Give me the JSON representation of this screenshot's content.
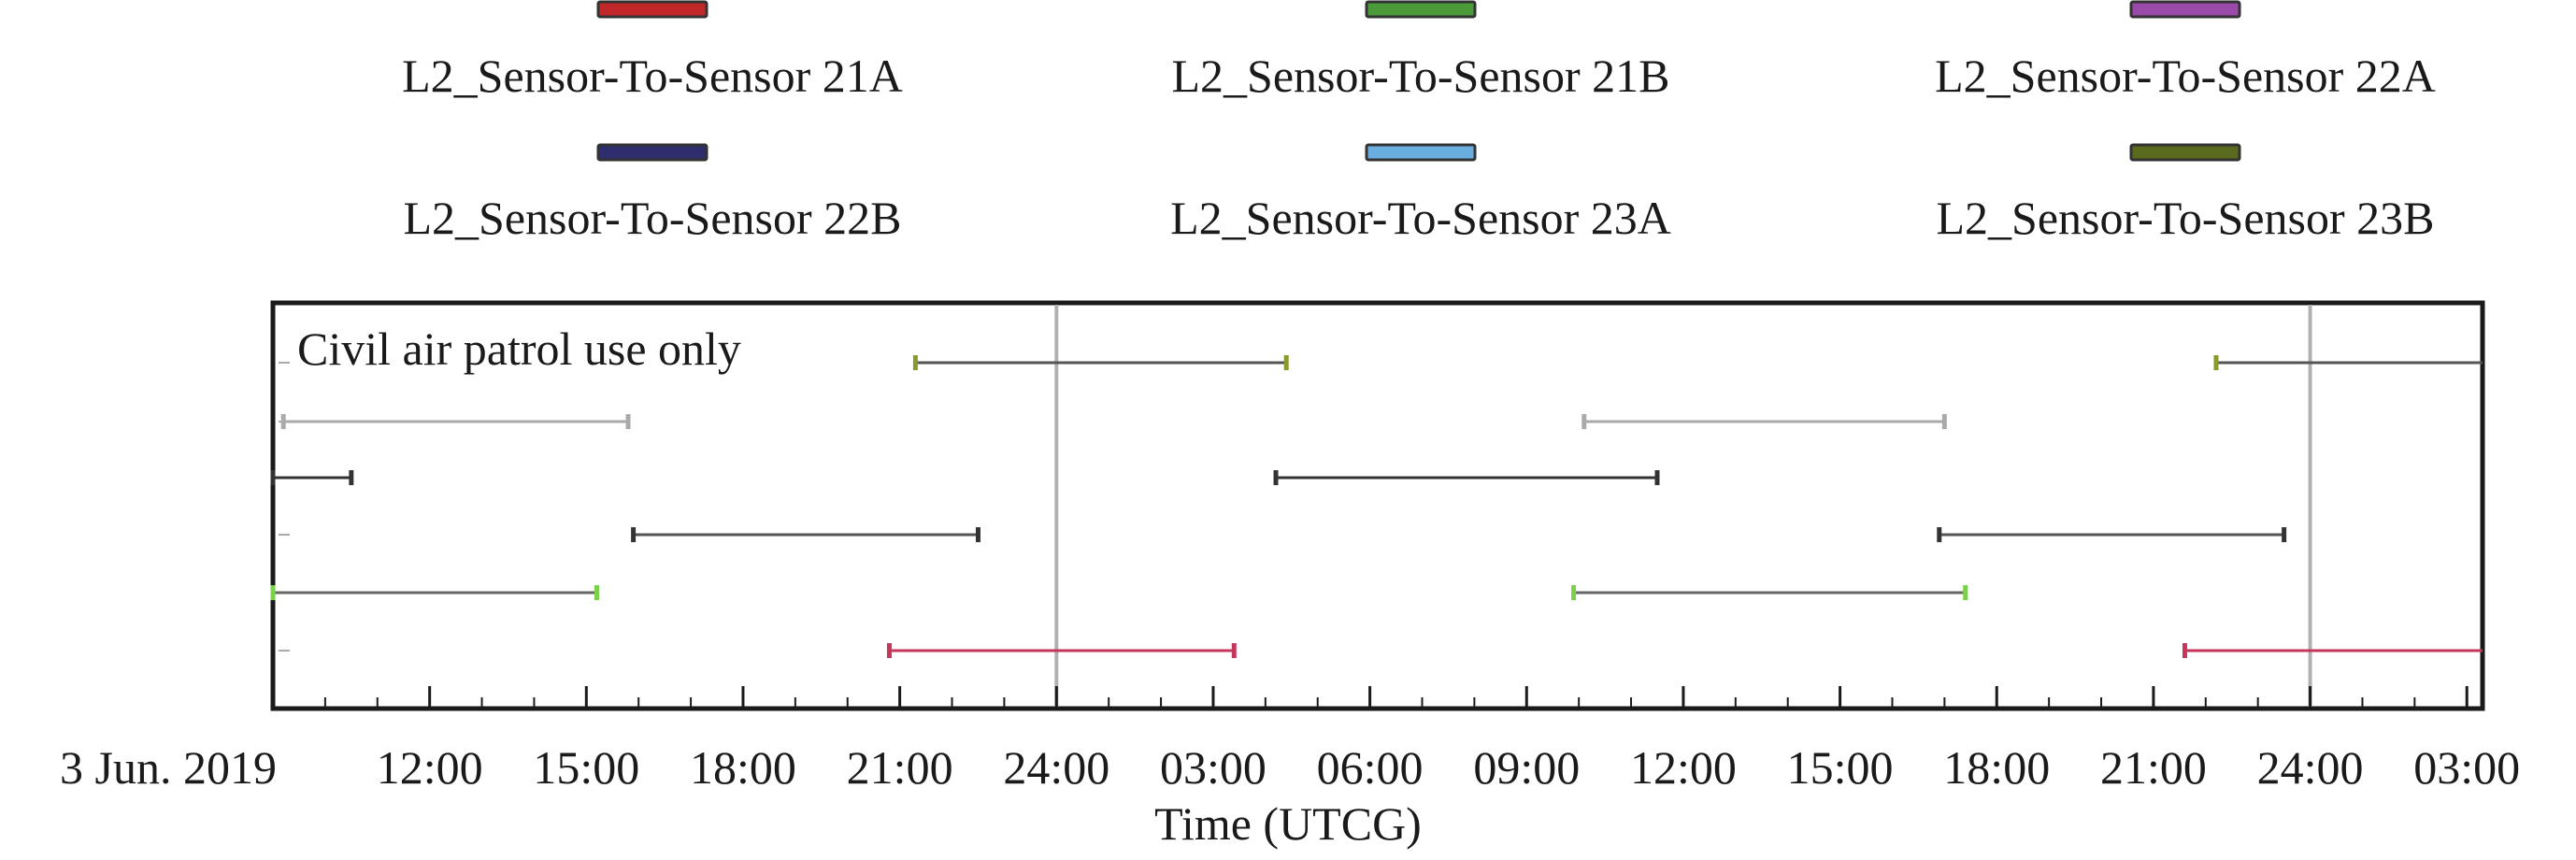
{
  "chart_data": {
    "type": "gantt",
    "title": "",
    "xlabel": "Time (UTCG)",
    "ylabel": "",
    "annotation": "Civil air patrol use only",
    "x_range_hours": [
      9,
      51.3
    ],
    "x_ticks": [
      {
        "hour": 9,
        "label": "3 Jun. 2019"
      },
      {
        "hour": 12,
        "label": "12:00"
      },
      {
        "hour": 15,
        "label": "15:00"
      },
      {
        "hour": 18,
        "label": "18:00"
      },
      {
        "hour": 21,
        "label": "21:00"
      },
      {
        "hour": 24,
        "label": "24:00"
      },
      {
        "hour": 27,
        "label": "03:00"
      },
      {
        "hour": 30,
        "label": "06:00"
      },
      {
        "hour": 33,
        "label": "09:00"
      },
      {
        "hour": 36,
        "label": "12:00"
      },
      {
        "hour": 39,
        "label": "15:00"
      },
      {
        "hour": 42,
        "label": "18:00"
      },
      {
        "hour": 45,
        "label": "21:00"
      },
      {
        "hour": 48,
        "label": "24:00"
      },
      {
        "hour": 51,
        "label": "03:00"
      }
    ],
    "day_boundaries_hours": [
      24,
      48
    ],
    "legend": [
      {
        "label": "L2_Sensor-To-Sensor 21A",
        "color": "#c0282a"
      },
      {
        "label": "L2_Sensor-To-Sensor 21B",
        "color": "#4a9a3a"
      },
      {
        "label": "L2_Sensor-To-Sensor 22A",
        "color": "#9a4aa8"
      },
      {
        "label": "L2_Sensor-To-Sensor 22B",
        "color": "#2e2e6e"
      },
      {
        "label": "L2_Sensor-To-Sensor 23A",
        "color": "#6aaee0"
      },
      {
        "label": "L2_Sensor-To-Sensor 23B",
        "color": "#5a6a1e"
      }
    ],
    "rows": [
      {
        "line_color": "#555555",
        "end_color": "#8a9a2a",
        "intervals": [
          [
            21.3,
            28.4
          ],
          [
            46.2,
            51.3
          ]
        ]
      },
      {
        "line_color": "#aaaaaa",
        "end_color": "#aaaaaa",
        "intervals": [
          [
            9.2,
            15.8
          ],
          [
            34.1,
            41.0
          ]
        ]
      },
      {
        "line_color": "#333333",
        "end_color": "#333333",
        "intervals": [
          [
            9.0,
            10.5
          ],
          [
            28.2,
            35.5
          ]
        ]
      },
      {
        "line_color": "#555555",
        "end_color": "#333333",
        "intervals": [
          [
            15.9,
            22.5
          ],
          [
            40.9,
            47.5
          ]
        ]
      },
      {
        "line_color": "#666666",
        "end_color": "#7ad14a",
        "intervals": [
          [
            9.0,
            15.2
          ],
          [
            33.9,
            41.4
          ]
        ]
      },
      {
        "line_color": "#c8355a",
        "end_color": "#c8355a",
        "intervals": [
          [
            20.8,
            27.4
          ],
          [
            45.6,
            51.3
          ]
        ]
      }
    ]
  }
}
